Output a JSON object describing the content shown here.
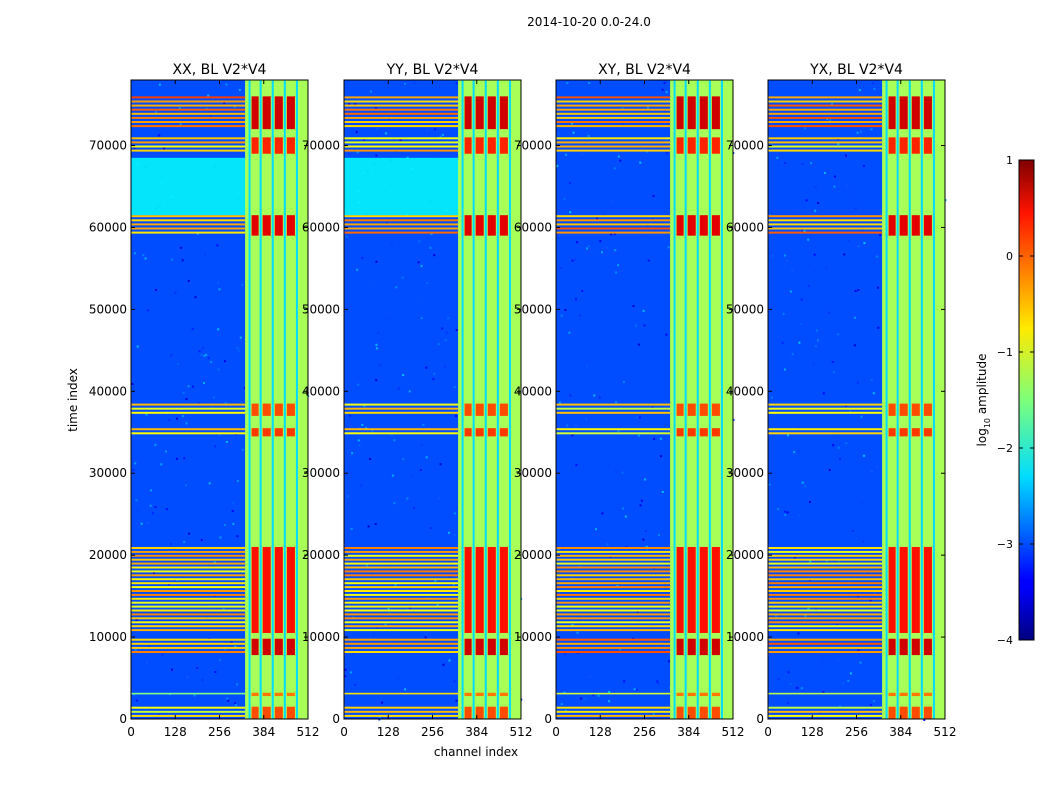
{
  "chart_data": {
    "type": "heatmap",
    "suptitle": "2014-10-20 0.0-24.0",
    "xlabel": "channel index",
    "ylabel": "time index",
    "xlim": [
      0,
      512
    ],
    "ylim": [
      0,
      78000
    ],
    "xticks": [
      0,
      128,
      256,
      384,
      512
    ],
    "yticks": [
      0,
      10000,
      20000,
      30000,
      40000,
      50000,
      60000,
      70000
    ],
    "colorbar": {
      "label": "log10 amplitude",
      "label_main": "log",
      "label_sub": "10",
      "label_rest": " amplitude",
      "range": [
        -4,
        1
      ],
      "ticks": [
        1,
        0,
        -1,
        -2,
        -3,
        -4
      ],
      "tick_labels": [
        "1",
        "0",
        "−1",
        "−2",
        "−3",
        "−4"
      ],
      "colormap": "jet"
    },
    "panels": [
      {
        "title": "XX, BL V2*V4",
        "pol": "XX"
      },
      {
        "title": "YY, BL V2*V4",
        "pol": "YY"
      },
      {
        "title": "XY, BL V2*V4",
        "pol": "XY"
      },
      {
        "title": "YX, BL V2*V4",
        "pol": "YX"
      }
    ],
    "background_level": -3.0,
    "rfi_channel_band": {
      "range": [
        330,
        512
      ],
      "level": -1.3
    },
    "subband_edges": [
      343,
      375,
      410,
      445,
      480
    ],
    "rfi_time_bands": [
      {
        "range": [
          0,
          1500
        ],
        "level": -0.3
      },
      {
        "range": [
          2800,
          3200
        ],
        "level": -0.5
      },
      {
        "range": [
          7800,
          9800
        ],
        "level": 0.3
      },
      {
        "range": [
          10500,
          21000
        ],
        "level": 0.0
      },
      {
        "range": [
          34500,
          35500
        ],
        "level": -0.2
      },
      {
        "range": [
          37000,
          38500
        ],
        "level": -0.3
      },
      {
        "range": [
          59000,
          61500
        ],
        "level": 0.2
      },
      {
        "range": [
          69000,
          71000
        ],
        "level": -0.1
      },
      {
        "range": [
          72000,
          76000
        ],
        "level": 0.3
      }
    ],
    "quiet_time_bands": [
      {
        "range": [
          61500,
          68500
        ],
        "level": -2.1,
        "pols": [
          "XX",
          "YY"
        ]
      }
    ]
  }
}
